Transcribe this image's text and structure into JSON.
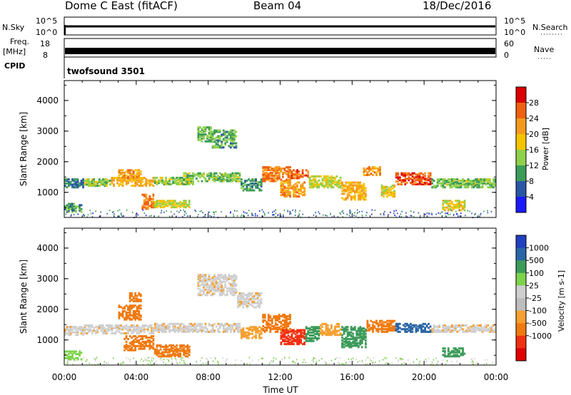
{
  "header": {
    "radar": "Dome C East (fitACF)",
    "beam": "Beam 04",
    "date": "18/Dec/2016"
  },
  "sky_panel": {
    "left_label": "N.Sky",
    "right_label": "N.Search",
    "ticks_top": "10^5",
    "ticks_bottom": "10^0"
  },
  "freq_panel": {
    "left_label_1": "Freq.",
    "left_label_2": "[MHz]",
    "left_tick_top": "18",
    "left_tick_bottom": "8",
    "right_tick_top": "60",
    "right_tick_bottom": "0",
    "right_label": "Nave"
  },
  "cpid": {
    "label": "CPID",
    "value": "twofsound 3501"
  },
  "colors": {
    "power_scale": [
      "#1a1aff",
      "#2a56a6",
      "#3c9b5a",
      "#8fd04a",
      "#f5c400",
      "#f59a1e",
      "#f06010",
      "#dc0000"
    ],
    "velocity_scale": [
      "#e00000",
      "#f03010",
      "#f07a10",
      "#f5a030",
      "#bdbdbd",
      "#cfcfcf",
      "#7dd34a",
      "#3c9b5a",
      "#2a66a6",
      "#2040c0"
    ]
  },
  "chart_data": [
    {
      "type": "heatmap",
      "title": "",
      "ylabel": "Slant Range [km]",
      "ylim": [
        180,
        4650
      ],
      "yticks": [
        "1000",
        "2000",
        "3000",
        "4000"
      ],
      "colorbar": {
        "label": "Power [dB]",
        "ticks": [
          "4",
          "8",
          "12",
          "16",
          "20",
          "24",
          "28"
        ],
        "range": [
          0,
          32
        ]
      },
      "regions": [
        {
          "t0": 0.0,
          "t1": 1.1,
          "r0": 1200,
          "r1": 1500,
          "v": 8
        },
        {
          "t0": 0.0,
          "t1": 1.0,
          "r0": 400,
          "r1": 700,
          "v": 10
        },
        {
          "t0": 1.1,
          "t1": 2.6,
          "r0": 1250,
          "r1": 1500,
          "v": 14
        },
        {
          "t0": 2.6,
          "t1": 5.0,
          "r0": 1250,
          "r1": 1550,
          "v": 20
        },
        {
          "t0": 3.0,
          "t1": 4.3,
          "r0": 1500,
          "r1": 1800,
          "v": 22
        },
        {
          "t0": 4.3,
          "t1": 5.0,
          "r0": 500,
          "r1": 1000,
          "v": 24
        },
        {
          "t0": 5.0,
          "t1": 7.2,
          "r0": 1300,
          "r1": 1550,
          "v": 14
        },
        {
          "t0": 5.0,
          "t1": 7.0,
          "r0": 550,
          "r1": 800,
          "v": 16
        },
        {
          "t0": 6.6,
          "t1": 9.8,
          "r0": 1400,
          "r1": 1700,
          "v": 13
        },
        {
          "t0": 7.4,
          "t1": 8.2,
          "r0": 2700,
          "r1": 3200,
          "v": 12
        },
        {
          "t0": 8.2,
          "t1": 9.6,
          "r0": 2500,
          "r1": 3100,
          "v": 11
        },
        {
          "t0": 9.8,
          "t1": 11.0,
          "r0": 1100,
          "r1": 1500,
          "v": 10
        },
        {
          "t0": 11.0,
          "t1": 12.6,
          "r0": 1400,
          "r1": 1900,
          "v": 24
        },
        {
          "t0": 12.0,
          "t1": 13.4,
          "r0": 900,
          "r1": 1400,
          "v": 22
        },
        {
          "t0": 12.6,
          "t1": 13.6,
          "r0": 1500,
          "r1": 1800,
          "v": 26
        },
        {
          "t0": 13.6,
          "t1": 15.4,
          "r0": 1200,
          "r1": 1600,
          "v": 16
        },
        {
          "t0": 15.4,
          "t1": 16.8,
          "r0": 800,
          "r1": 1400,
          "v": 20
        },
        {
          "t0": 16.6,
          "t1": 17.6,
          "r0": 1600,
          "r1": 1900,
          "v": 22
        },
        {
          "t0": 17.6,
          "t1": 18.4,
          "r0": 900,
          "r1": 1300,
          "v": 18
        },
        {
          "t0": 18.4,
          "t1": 20.4,
          "r0": 1300,
          "r1": 1700,
          "v": 27
        },
        {
          "t0": 20.4,
          "t1": 24.0,
          "r0": 1200,
          "r1": 1500,
          "v": 13
        },
        {
          "t0": 21.0,
          "t1": 22.3,
          "r0": 450,
          "r1": 800,
          "v": 17
        }
      ]
    },
    {
      "type": "heatmap",
      "title": "",
      "xlabel": "Time UT",
      "ylabel": "Slant Range [km]",
      "ylim": [
        180,
        4650
      ],
      "yticks": [
        "1000",
        "2000",
        "3000",
        "4000"
      ],
      "xticks": [
        "00:00",
        "04:00",
        "08:00",
        "12:00",
        "16:00",
        "20:00",
        "00:00"
      ],
      "xlim": [
        0,
        24
      ],
      "colorbar": {
        "label": "Velocity [m s-1]",
        "ticks": [
          "1000",
          "500",
          "100",
          "25",
          "-25",
          "-100",
          "-500",
          "-1000"
        ]
      },
      "regions": [
        {
          "t0": 0.0,
          "t1": 1.1,
          "r0": 1200,
          "r1": 1500,
          "v": 0
        },
        {
          "t0": 0.0,
          "t1": 1.0,
          "r0": 400,
          "r1": 700,
          "v": 50
        },
        {
          "t0": 1.1,
          "t1": 5.0,
          "r0": 1250,
          "r1": 1550,
          "v": 0
        },
        {
          "t0": 3.0,
          "t1": 4.3,
          "r0": 1700,
          "r1": 2200,
          "v": -300
        },
        {
          "t0": 3.6,
          "t1": 4.3,
          "r0": 2300,
          "r1": 2600,
          "v": -200
        },
        {
          "t0": 3.3,
          "t1": 5.0,
          "r0": 700,
          "r1": 1200,
          "v": -400
        },
        {
          "t0": 5.0,
          "t1": 7.0,
          "r0": 500,
          "r1": 900,
          "v": -450
        },
        {
          "t0": 5.0,
          "t1": 9.8,
          "r0": 1300,
          "r1": 1600,
          "v": 0
        },
        {
          "t0": 7.4,
          "t1": 9.6,
          "r0": 2500,
          "r1": 3200,
          "v": 0
        },
        {
          "t0": 9.6,
          "t1": 11.0,
          "r0": 2100,
          "r1": 2600,
          "v": 0
        },
        {
          "t0": 9.8,
          "t1": 11.0,
          "r0": 1100,
          "r1": 1500,
          "v": -80
        },
        {
          "t0": 11.0,
          "t1": 12.6,
          "r0": 1300,
          "r1": 1900,
          "v": -400
        },
        {
          "t0": 12.0,
          "t1": 13.4,
          "r0": 900,
          "r1": 1400,
          "v": -600
        },
        {
          "t0": 13.4,
          "t1": 14.2,
          "r0": 1000,
          "r1": 1500,
          "v": 150
        },
        {
          "t0": 14.2,
          "t1": 15.4,
          "r0": 1200,
          "r1": 1600,
          "v": -80
        },
        {
          "t0": 15.4,
          "t1": 16.8,
          "r0": 800,
          "r1": 1500,
          "v": 200
        },
        {
          "t0": 16.8,
          "t1": 18.4,
          "r0": 1300,
          "r1": 1700,
          "v": -200
        },
        {
          "t0": 18.4,
          "t1": 20.4,
          "r0": 1300,
          "r1": 1600,
          "v": 600
        },
        {
          "t0": 20.4,
          "t1": 24.0,
          "r0": 1300,
          "r1": 1550,
          "v": 0
        },
        {
          "t0": 21.0,
          "t1": 22.3,
          "r0": 500,
          "r1": 800,
          "v": 150
        }
      ]
    }
  ]
}
